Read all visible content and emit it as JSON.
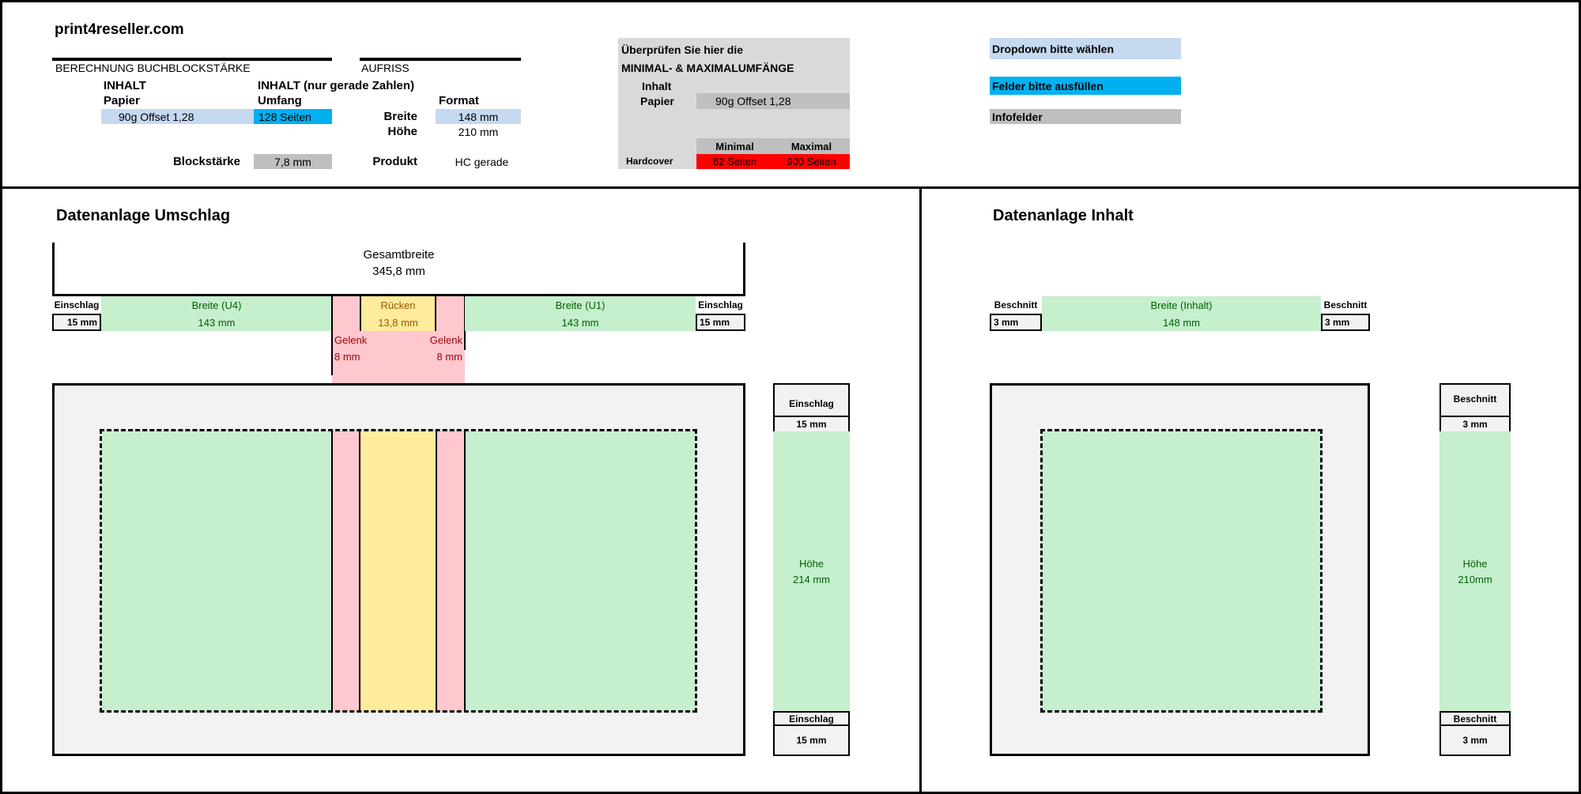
{
  "brand": "print4reseller.com",
  "calc": {
    "section": "BERECHNUNG BUCHBLOCKSTÄRKE",
    "inhalt": "INHALT",
    "papier_label": "Papier",
    "papier_value": "90g Offset 1,28",
    "inhalt2": "INHALT (nur gerade Zahlen)",
    "umfang_label": "Umfang",
    "umfang_value": "128 Seiten",
    "blockstaerke_label": "Blockstärke",
    "blockstaerke_value": "7,8 mm"
  },
  "aufriss": {
    "section": "AUFRISS",
    "format_label": "Format",
    "breite_label": "Breite",
    "breite_value": "148 mm",
    "hoehe_label": "Höhe",
    "hoehe_value": "210 mm",
    "produkt_label": "Produkt",
    "produkt_value": "HC gerade"
  },
  "check": {
    "line1": "Überprüfen Sie hier die",
    "line2": "MINIMAL- & MAXIMALUMFÄNGE",
    "inhalt": "Inhalt",
    "papier_label": "Papier",
    "papier_value": "90g Offset 1,28",
    "min_header": "Minimal",
    "max_header": "Maximal",
    "row_label": "Hardcover",
    "min_value": "82 Seiten",
    "max_value": "900 Seiten"
  },
  "legend": {
    "dropdown": "Dropdown bitte wählen",
    "felder": "Felder bitte ausfüllen",
    "info": "Infofelder"
  },
  "umschlag": {
    "title": "Datenanlage Umschlag",
    "gesamt_label": "Gesamtbreite",
    "gesamt_value": "345,8 mm",
    "einschlag_label": "Einschlag",
    "einschlag_value": "15 mm",
    "u4_label": "Breite (U4)",
    "u4_value": "143 mm",
    "ruecken_label": "Rücken",
    "ruecken_value": "13,8 mm",
    "gelenk_label": "Gelenk",
    "gelenk_value": "8 mm",
    "u1_label": "Breite (U1)",
    "u1_value": "143 mm",
    "hoehe_label": "Höhe",
    "hoehe_value": "214 mm"
  },
  "inhalt": {
    "title": "Datenanlage Inhalt",
    "beschnitt_label": "Beschnitt",
    "beschnitt_value": "3 mm",
    "breite_label": "Breite (Inhalt)",
    "breite_value": "148 mm",
    "hoehe_label": "Höhe",
    "hoehe_value": "210mm"
  },
  "colors": {
    "dropdown": "#c5d9f1",
    "felder": "#00b0f0",
    "info": "#bfbfbf",
    "error": "#ff0000",
    "green": "#c6efce",
    "pink": "#ffc7ce",
    "yellow": "#ffeb9c"
  }
}
